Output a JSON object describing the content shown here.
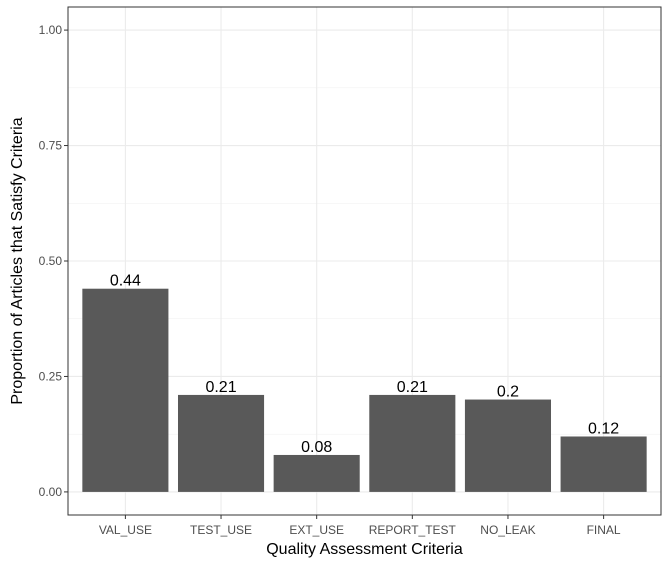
{
  "chart_data": {
    "type": "bar",
    "categories": [
      "VAL_USE",
      "TEST_USE",
      "EXT_USE",
      "REPORT_TEST",
      "NO_LEAK",
      "FINAL"
    ],
    "values": [
      0.44,
      0.21,
      0.08,
      0.21,
      0.2,
      0.12
    ],
    "data_labels": [
      "0.44",
      "0.21",
      "0.08",
      "0.21",
      "0.2",
      "0.12"
    ],
    "xlabel": "Quality Assessment Criteria",
    "ylabel": "Proportion of Articles that Satisfy Criteria",
    "ylim": [
      -0.05,
      1.05
    ],
    "yticks": [
      0.0,
      0.25,
      0.5,
      0.75,
      1.0
    ],
    "ytick_labels": [
      "0.00",
      "0.25",
      "0.50",
      "0.75",
      "1.00"
    ],
    "grid": true,
    "legend": "none",
    "bar_color": "#595959",
    "grid_color": "#ebebeb"
  }
}
